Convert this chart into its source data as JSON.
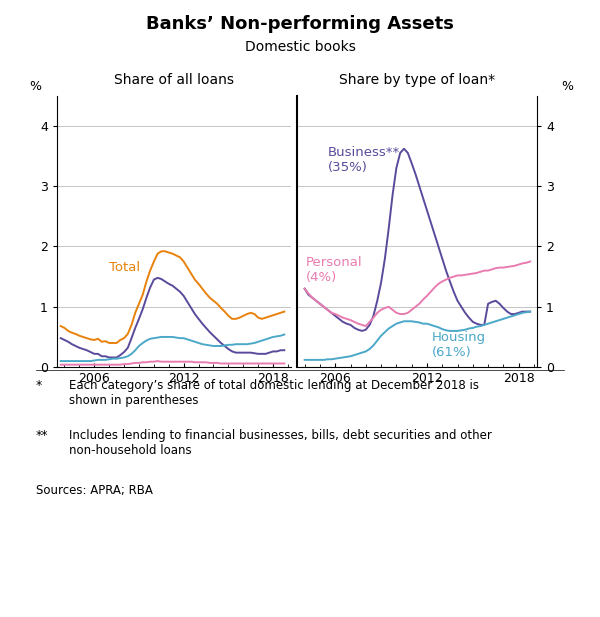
{
  "title": "Banks’ Non-performing Assets",
  "subtitle": "Domestic books",
  "left_panel_title": "Share of all loans",
  "right_panel_title": "Share by type of loan*",
  "ylabel_left": "%",
  "ylabel_right": "%",
  "ylim": [
    0,
    4.5
  ],
  "yticks": [
    0,
    1,
    2,
    3,
    4
  ],
  "xlim": [
    2003.5,
    2019.2
  ],
  "xticks": [
    2006,
    2012,
    2018
  ],
  "footnote1_star": "*",
  "footnote1_text": "Each category’s share of total domestic lending at December 2018 is\nshown in parentheses",
  "footnote2_star": "**",
  "footnote2_text": "Includes lending to financial businesses, bills, debt securities and other\nnon-household loans",
  "sources": "Sources: APRA; RBA",
  "colors": {
    "total": "#E8820C",
    "business": "#5B4A9B",
    "housing": "#4BA8C8",
    "personal": "#E87CB0"
  },
  "left_total_x": [
    2003.75,
    2004.0,
    2004.25,
    2004.5,
    2004.75,
    2005.0,
    2005.25,
    2005.5,
    2005.75,
    2006.0,
    2006.25,
    2006.5,
    2006.75,
    2007.0,
    2007.25,
    2007.5,
    2007.75,
    2008.0,
    2008.25,
    2008.5,
    2008.75,
    2009.0,
    2009.25,
    2009.5,
    2009.75,
    2010.0,
    2010.25,
    2010.5,
    2010.75,
    2011.0,
    2011.25,
    2011.5,
    2011.75,
    2012.0,
    2012.25,
    2012.5,
    2012.75,
    2013.0,
    2013.25,
    2013.5,
    2013.75,
    2014.0,
    2014.25,
    2014.5,
    2014.75,
    2015.0,
    2015.25,
    2015.5,
    2015.75,
    2016.0,
    2016.25,
    2016.5,
    2016.75,
    2017.0,
    2017.25,
    2017.5,
    2017.75,
    2018.0,
    2018.25,
    2018.5,
    2018.75
  ],
  "left_total_y": [
    0.68,
    0.65,
    0.6,
    0.57,
    0.55,
    0.52,
    0.5,
    0.48,
    0.46,
    0.45,
    0.47,
    0.42,
    0.43,
    0.4,
    0.4,
    0.4,
    0.45,
    0.48,
    0.55,
    0.7,
    0.9,
    1.05,
    1.2,
    1.42,
    1.6,
    1.75,
    1.88,
    1.92,
    1.92,
    1.9,
    1.88,
    1.85,
    1.82,
    1.75,
    1.65,
    1.55,
    1.45,
    1.38,
    1.3,
    1.22,
    1.15,
    1.1,
    1.05,
    0.98,
    0.92,
    0.85,
    0.8,
    0.8,
    0.82,
    0.85,
    0.88,
    0.9,
    0.88,
    0.82,
    0.8,
    0.82,
    0.84,
    0.86,
    0.88,
    0.9,
    0.92
  ],
  "left_business_x": [
    2003.75,
    2004.0,
    2004.25,
    2004.5,
    2004.75,
    2005.0,
    2005.25,
    2005.5,
    2005.75,
    2006.0,
    2006.25,
    2006.5,
    2006.75,
    2007.0,
    2007.25,
    2007.5,
    2007.75,
    2008.0,
    2008.25,
    2008.5,
    2008.75,
    2009.0,
    2009.25,
    2009.5,
    2009.75,
    2010.0,
    2010.25,
    2010.5,
    2010.75,
    2011.0,
    2011.25,
    2011.5,
    2011.75,
    2012.0,
    2012.25,
    2012.5,
    2012.75,
    2013.0,
    2013.25,
    2013.5,
    2013.75,
    2014.0,
    2014.25,
    2014.5,
    2014.75,
    2015.0,
    2015.25,
    2015.5,
    2015.75,
    2016.0,
    2016.25,
    2016.5,
    2016.75,
    2017.0,
    2017.25,
    2017.5,
    2017.75,
    2018.0,
    2018.25,
    2018.5,
    2018.75
  ],
  "left_business_y": [
    0.48,
    0.45,
    0.42,
    0.38,
    0.35,
    0.32,
    0.3,
    0.28,
    0.25,
    0.22,
    0.22,
    0.18,
    0.18,
    0.16,
    0.16,
    0.16,
    0.2,
    0.25,
    0.32,
    0.48,
    0.65,
    0.8,
    0.96,
    1.15,
    1.32,
    1.45,
    1.48,
    1.46,
    1.42,
    1.38,
    1.35,
    1.3,
    1.25,
    1.18,
    1.08,
    0.98,
    0.88,
    0.8,
    0.72,
    0.65,
    0.58,
    0.52,
    0.46,
    0.4,
    0.35,
    0.3,
    0.26,
    0.24,
    0.24,
    0.24,
    0.24,
    0.24,
    0.23,
    0.22,
    0.22,
    0.22,
    0.24,
    0.26,
    0.26,
    0.28,
    0.28
  ],
  "left_housing_x": [
    2003.75,
    2004.0,
    2004.25,
    2004.5,
    2004.75,
    2005.0,
    2005.25,
    2005.5,
    2005.75,
    2006.0,
    2006.25,
    2006.5,
    2006.75,
    2007.0,
    2007.25,
    2007.5,
    2007.75,
    2008.0,
    2008.25,
    2008.5,
    2008.75,
    2009.0,
    2009.25,
    2009.5,
    2009.75,
    2010.0,
    2010.25,
    2010.5,
    2010.75,
    2011.0,
    2011.25,
    2011.5,
    2011.75,
    2012.0,
    2012.25,
    2012.5,
    2012.75,
    2013.0,
    2013.25,
    2013.5,
    2013.75,
    2014.0,
    2014.25,
    2014.5,
    2014.75,
    2015.0,
    2015.25,
    2015.5,
    2015.75,
    2016.0,
    2016.25,
    2016.5,
    2016.75,
    2017.0,
    2017.25,
    2017.5,
    2017.75,
    2018.0,
    2018.25,
    2018.5,
    2018.75
  ],
  "left_housing_y": [
    0.1,
    0.1,
    0.1,
    0.1,
    0.1,
    0.1,
    0.1,
    0.1,
    0.1,
    0.11,
    0.12,
    0.12,
    0.12,
    0.13,
    0.14,
    0.14,
    0.15,
    0.16,
    0.18,
    0.22,
    0.28,
    0.35,
    0.4,
    0.44,
    0.47,
    0.48,
    0.49,
    0.5,
    0.5,
    0.5,
    0.5,
    0.49,
    0.48,
    0.48,
    0.46,
    0.44,
    0.42,
    0.4,
    0.38,
    0.37,
    0.36,
    0.35,
    0.35,
    0.35,
    0.36,
    0.37,
    0.37,
    0.38,
    0.38,
    0.38,
    0.38,
    0.39,
    0.4,
    0.42,
    0.44,
    0.46,
    0.48,
    0.5,
    0.51,
    0.52,
    0.54
  ],
  "left_personal_x": [
    2003.75,
    2004.0,
    2004.25,
    2004.5,
    2004.75,
    2005.0,
    2005.25,
    2005.5,
    2005.75,
    2006.0,
    2006.25,
    2006.5,
    2006.75,
    2007.0,
    2007.25,
    2007.5,
    2007.75,
    2008.0,
    2008.25,
    2008.5,
    2008.75,
    2009.0,
    2009.25,
    2009.5,
    2009.75,
    2010.0,
    2010.25,
    2010.5,
    2010.75,
    2011.0,
    2011.25,
    2011.5,
    2011.75,
    2012.0,
    2012.25,
    2012.5,
    2012.75,
    2013.0,
    2013.25,
    2013.5,
    2013.75,
    2014.0,
    2014.25,
    2014.5,
    2014.75,
    2015.0,
    2015.25,
    2015.5,
    2015.75,
    2016.0,
    2016.25,
    2016.5,
    2016.75,
    2017.0,
    2017.25,
    2017.5,
    2017.75,
    2018.0,
    2018.25,
    2018.5,
    2018.75
  ],
  "left_personal_y": [
    0.04,
    0.04,
    0.04,
    0.04,
    0.04,
    0.04,
    0.04,
    0.04,
    0.04,
    0.04,
    0.04,
    0.04,
    0.04,
    0.04,
    0.04,
    0.04,
    0.04,
    0.05,
    0.05,
    0.06,
    0.07,
    0.07,
    0.08,
    0.08,
    0.09,
    0.09,
    0.1,
    0.09,
    0.09,
    0.09,
    0.09,
    0.09,
    0.09,
    0.09,
    0.09,
    0.09,
    0.08,
    0.08,
    0.08,
    0.08,
    0.07,
    0.07,
    0.07,
    0.06,
    0.06,
    0.06,
    0.06,
    0.06,
    0.06,
    0.06,
    0.06,
    0.06,
    0.06,
    0.06,
    0.06,
    0.06,
    0.06,
    0.06,
    0.06,
    0.06,
    0.06
  ],
  "right_business_x": [
    2004.0,
    2004.25,
    2004.5,
    2004.75,
    2005.0,
    2005.25,
    2005.5,
    2005.75,
    2006.0,
    2006.25,
    2006.5,
    2006.75,
    2007.0,
    2007.25,
    2007.5,
    2007.75,
    2008.0,
    2008.25,
    2008.5,
    2008.75,
    2009.0,
    2009.25,
    2009.5,
    2009.75,
    2010.0,
    2010.25,
    2010.5,
    2010.75,
    2011.0,
    2011.25,
    2011.5,
    2011.75,
    2012.0,
    2012.25,
    2012.5,
    2012.75,
    2013.0,
    2013.25,
    2013.5,
    2013.75,
    2014.0,
    2014.25,
    2014.5,
    2014.75,
    2015.0,
    2015.25,
    2015.5,
    2015.75,
    2016.0,
    2016.25,
    2016.5,
    2016.75,
    2017.0,
    2017.25,
    2017.5,
    2017.75,
    2018.0,
    2018.25,
    2018.5,
    2018.75
  ],
  "right_business_y": [
    1.3,
    1.2,
    1.15,
    1.1,
    1.05,
    1.0,
    0.95,
    0.9,
    0.85,
    0.8,
    0.75,
    0.72,
    0.7,
    0.65,
    0.62,
    0.6,
    0.62,
    0.7,
    0.85,
    1.1,
    1.4,
    1.8,
    2.3,
    2.85,
    3.3,
    3.55,
    3.62,
    3.55,
    3.38,
    3.2,
    3.0,
    2.8,
    2.6,
    2.4,
    2.2,
    2.0,
    1.8,
    1.6,
    1.42,
    1.25,
    1.1,
    1.0,
    0.9,
    0.82,
    0.75,
    0.72,
    0.7,
    0.7,
    1.05,
    1.08,
    1.1,
    1.05,
    0.98,
    0.92,
    0.88,
    0.88,
    0.9,
    0.92,
    0.92,
    0.92
  ],
  "right_housing_x": [
    2004.0,
    2004.25,
    2004.5,
    2004.75,
    2005.0,
    2005.25,
    2005.5,
    2005.75,
    2006.0,
    2006.25,
    2006.5,
    2006.75,
    2007.0,
    2007.25,
    2007.5,
    2007.75,
    2008.0,
    2008.25,
    2008.5,
    2008.75,
    2009.0,
    2009.25,
    2009.5,
    2009.75,
    2010.0,
    2010.25,
    2010.5,
    2010.75,
    2011.0,
    2011.25,
    2011.5,
    2011.75,
    2012.0,
    2012.25,
    2012.5,
    2012.75,
    2013.0,
    2013.25,
    2013.5,
    2013.75,
    2014.0,
    2014.25,
    2014.5,
    2014.75,
    2015.0,
    2015.25,
    2015.5,
    2015.75,
    2016.0,
    2016.25,
    2016.5,
    2016.75,
    2017.0,
    2017.25,
    2017.5,
    2017.75,
    2018.0,
    2018.25,
    2018.5,
    2018.75
  ],
  "right_housing_y": [
    0.12,
    0.12,
    0.12,
    0.12,
    0.12,
    0.12,
    0.13,
    0.13,
    0.14,
    0.15,
    0.16,
    0.17,
    0.18,
    0.2,
    0.22,
    0.24,
    0.26,
    0.3,
    0.36,
    0.44,
    0.52,
    0.58,
    0.64,
    0.68,
    0.72,
    0.74,
    0.76,
    0.76,
    0.76,
    0.75,
    0.74,
    0.72,
    0.72,
    0.7,
    0.68,
    0.66,
    0.63,
    0.61,
    0.6,
    0.6,
    0.6,
    0.61,
    0.62,
    0.64,
    0.65,
    0.67,
    0.68,
    0.7,
    0.72,
    0.74,
    0.76,
    0.78,
    0.8,
    0.82,
    0.84,
    0.86,
    0.88,
    0.9,
    0.91,
    0.92
  ],
  "right_personal_x": [
    2004.0,
    2004.25,
    2004.5,
    2004.75,
    2005.0,
    2005.25,
    2005.5,
    2005.75,
    2006.0,
    2006.25,
    2006.5,
    2006.75,
    2007.0,
    2007.25,
    2007.5,
    2007.75,
    2008.0,
    2008.25,
    2008.5,
    2008.75,
    2009.0,
    2009.25,
    2009.5,
    2009.75,
    2010.0,
    2010.25,
    2010.5,
    2010.75,
    2011.0,
    2011.25,
    2011.5,
    2011.75,
    2012.0,
    2012.25,
    2012.5,
    2012.75,
    2013.0,
    2013.25,
    2013.5,
    2013.75,
    2014.0,
    2014.25,
    2014.5,
    2014.75,
    2015.0,
    2015.25,
    2015.5,
    2015.75,
    2016.0,
    2016.25,
    2016.5,
    2016.75,
    2017.0,
    2017.25,
    2017.5,
    2017.75,
    2018.0,
    2018.25,
    2018.5,
    2018.75
  ],
  "right_personal_y": [
    1.3,
    1.22,
    1.15,
    1.1,
    1.05,
    1.0,
    0.95,
    0.9,
    0.88,
    0.85,
    0.82,
    0.8,
    0.78,
    0.75,
    0.72,
    0.7,
    0.68,
    0.75,
    0.82,
    0.9,
    0.95,
    0.98,
    1.0,
    0.95,
    0.9,
    0.88,
    0.88,
    0.9,
    0.95,
    1.0,
    1.05,
    1.12,
    1.18,
    1.25,
    1.32,
    1.38,
    1.42,
    1.45,
    1.48,
    1.5,
    1.52,
    1.52,
    1.53,
    1.54,
    1.55,
    1.56,
    1.58,
    1.6,
    1.6,
    1.62,
    1.64,
    1.65,
    1.65,
    1.66,
    1.67,
    1.68,
    1.7,
    1.72,
    1.73,
    1.75
  ]
}
